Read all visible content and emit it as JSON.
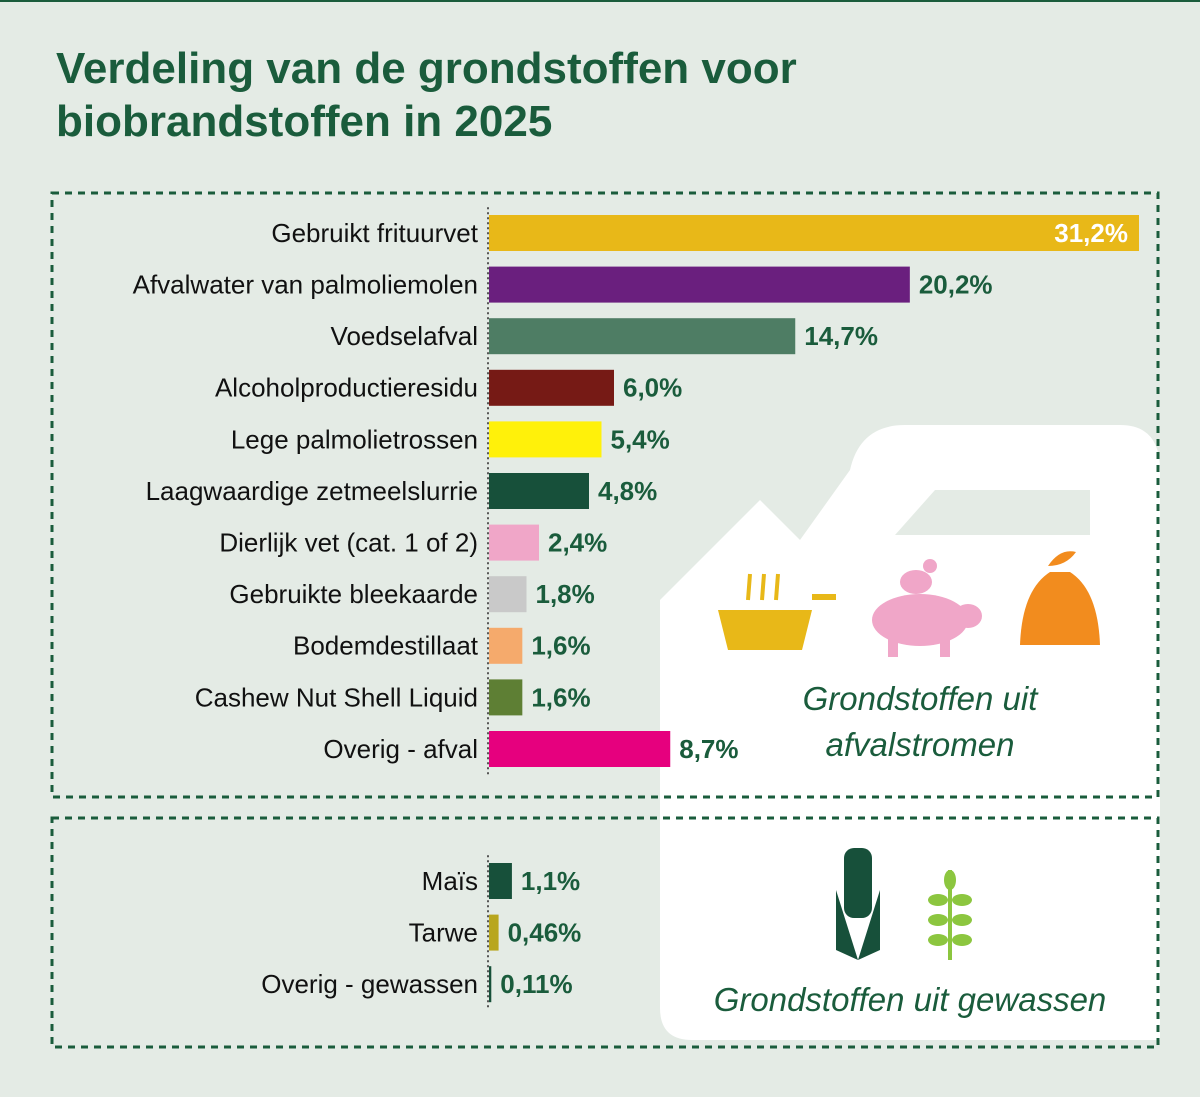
{
  "title": "Verdeling van de grondstoffen voor biobrandstoffen in 2025",
  "chart_data": [
    {
      "type": "bar",
      "orientation": "horizontal",
      "caption": "Grondstoffen uit afvalstromen",
      "categories": [
        "Gebruikt frituurvet",
        "Afvalwater van palmoliemolen",
        "Voedselafval",
        "Alcoholproductieresidu",
        "Lege palmolietrossen",
        "Laagwaardige zetmeelslurrie",
        "Dierlijk vet (cat. 1 of 2)",
        "Gebruikte bleekaarde",
        "Bodemdestillaat",
        "Cashew Nut Shell Liquid",
        "Overig - afval"
      ],
      "values": [
        31.2,
        20.2,
        14.7,
        6.0,
        5.4,
        4.8,
        2.4,
        1.8,
        1.6,
        1.6,
        8.7
      ],
      "value_labels": [
        "31,2%",
        "20,2%",
        "14,7%",
        "6,0%",
        "5,4%",
        "4,8%",
        "2,4%",
        "1,8%",
        "1,6%",
        "1,6%",
        "8,7%"
      ],
      "colors": [
        "#e8b818",
        "#6a1f7e",
        "#4e7d64",
        "#761a15",
        "#fff10a",
        "#17503a",
        "#f0a6c8",
        "#c9c9c9",
        "#f5aa6c",
        "#5e7f34",
        "#e6007e"
      ]
    },
    {
      "type": "bar",
      "orientation": "horizontal",
      "caption": "Grondstoffen uit gewassen",
      "categories": [
        "Maïs",
        "Tarwe",
        "Overig - gewassen"
      ],
      "values": [
        1.1,
        0.46,
        0.11
      ],
      "value_labels": [
        "1,1%",
        "0,46%",
        "0,11%"
      ],
      "colors": [
        "#17503a",
        "#b8a61e",
        "#17503a"
      ]
    }
  ]
}
